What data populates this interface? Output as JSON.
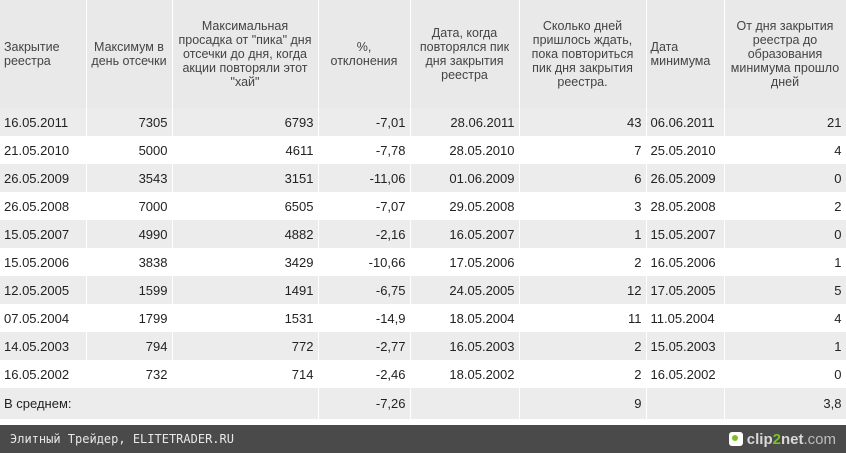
{
  "table": {
    "headers": [
      "Закрытие реестра",
      "Максимум в день отсечки",
      "Максимальная просадка от \"пика\" дня отсечки до дня, когда акции повторяли этот \"хай\"",
      "%, отклонения",
      "Дата, когда повторялся пик дня закрытия реестра",
      "Сколько дней пришлось ждать, пока повториться пик дня закрытия реестра.",
      "Дата минимума",
      "От дня закрытия реестра до образования минимума прошло дней"
    ],
    "rows": [
      [
        "16.05.2011",
        "7305",
        "6793",
        "-7,01",
        "28.06.2011",
        "43",
        "06.06.2011",
        "21"
      ],
      [
        "21.05.2010",
        "5000",
        "4611",
        "-7,78",
        "28.05.2010",
        "7",
        "25.05.2010",
        "4"
      ],
      [
        "26.05.2009",
        "3543",
        "3151",
        "-11,06",
        "01.06.2009",
        "6",
        "26.05.2009",
        "0"
      ],
      [
        "26.05.2008",
        "7000",
        "6505",
        "-7,07",
        "29.05.2008",
        "3",
        "28.05.2008",
        "2"
      ],
      [
        "15.05.2007",
        "4990",
        "4882",
        "-2,16",
        "16.05.2007",
        "1",
        "15.05.2007",
        "0"
      ],
      [
        "15.05.2006",
        "3838",
        "3429",
        "-10,66",
        "17.05.2006",
        "2",
        "16.05.2006",
        "1"
      ],
      [
        "12.05.2005",
        "1599",
        "1491",
        "-6,75",
        "24.05.2005",
        "12",
        "17.05.2005",
        "5"
      ],
      [
        "07.05.2004",
        "1799",
        "1531",
        "-14,9",
        "18.05.2004",
        "11",
        "11.05.2004",
        "4"
      ],
      [
        "14.05.2003",
        "794",
        "772",
        "-2,77",
        "16.05.2003",
        "2",
        "15.05.2003",
        "1"
      ],
      [
        "16.05.2002",
        "732",
        "714",
        "-2,46",
        "18.05.2002",
        "2",
        "16.05.2002",
        "0"
      ]
    ],
    "average": {
      "label": "В среднем:",
      "percent": "-7,26",
      "days_wait": "9",
      "days_min": "3,8"
    }
  },
  "footer": {
    "caption": "Элитный Трейдер, ELITETRADER.RU",
    "brand_clip": "clip",
    "brand_two": "2",
    "brand_net": "net",
    "brand_com": ".com"
  }
}
